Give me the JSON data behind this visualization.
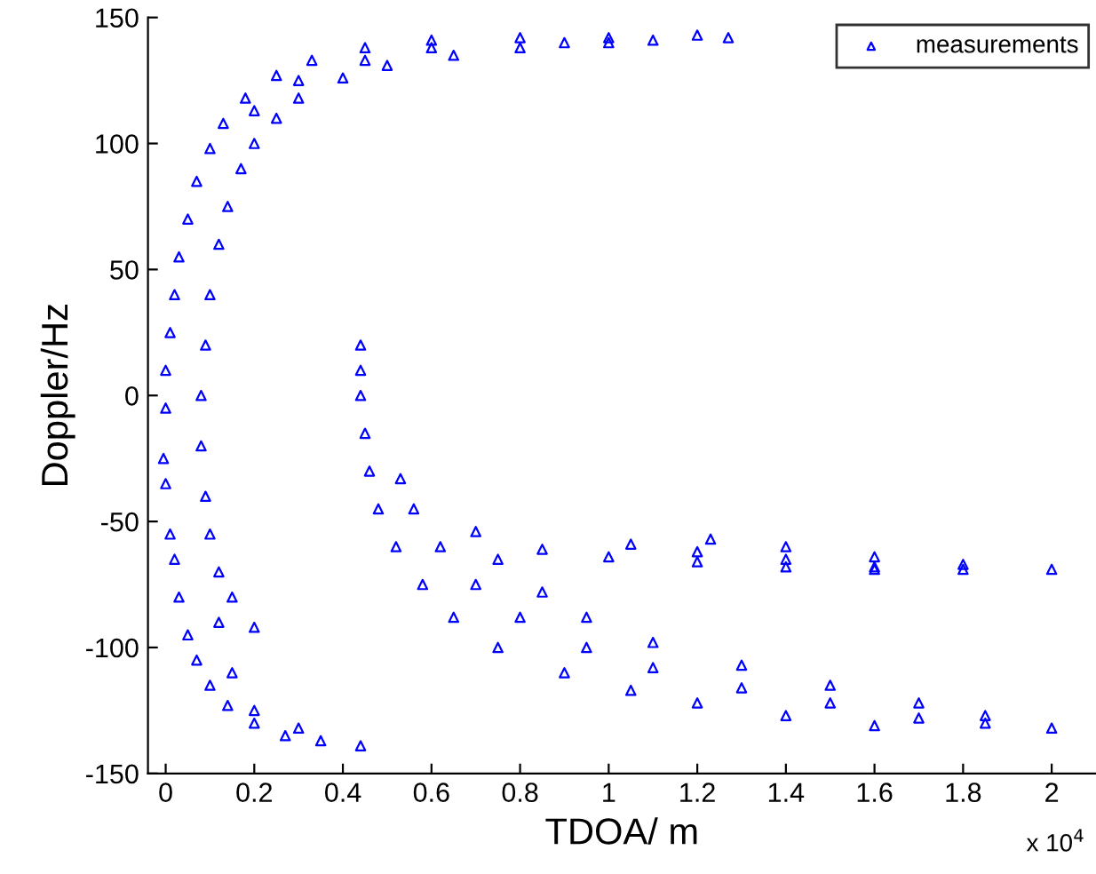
{
  "chart_data": {
    "type": "scatter",
    "xlabel": "TDOA/ m",
    "ylabel": "Doppler/Hz",
    "annotations": [
      "x 10$^{4}$"
    ],
    "series": [
      {
        "name": "measurements",
        "color": "#0000ff",
        "x": [
          0.44,
          0.35,
          0.27,
          0.2,
          0.14,
          0.1,
          0.07,
          0.05,
          0.03,
          0.02,
          0.01,
          0.0,
          -0.005,
          0.0,
          0.0,
          0.01,
          0.02,
          0.03,
          0.05,
          0.07,
          0.1,
          0.13,
          0.18,
          0.25,
          0.33,
          0.45,
          0.6,
          0.8,
          1.0,
          1.2,
          1.27,
          0.08,
          0.09,
          0.1,
          0.12,
          0.14,
          0.17,
          0.2,
          0.25,
          0.3,
          0.4,
          0.5,
          0.65,
          0.8,
          1.0,
          1.1,
          0.08,
          0.09,
          0.1,
          0.12,
          0.15,
          0.2,
          0.12,
          0.15,
          0.2,
          0.3,
          0.44,
          0.44,
          0.44,
          0.45,
          0.46,
          0.48,
          0.52,
          0.58,
          0.65,
          0.75,
          0.9,
          1.05,
          1.2,
          1.4,
          1.6,
          0.53,
          0.56,
          0.62,
          0.7,
          0.8,
          0.95,
          1.1,
          1.3,
          1.5,
          1.7,
          1.85,
          2.0,
          0.7,
          0.75,
          0.85,
          0.95,
          1.1,
          1.3,
          1.5,
          1.7,
          1.85,
          0.85,
          1.0,
          1.2,
          1.4,
          1.6,
          1.8,
          2.0,
          1.05,
          1.2,
          1.4,
          1.6,
          1.23,
          1.4,
          1.6,
          1.8,
          0.2,
          0.3,
          0.45,
          0.6,
          0.9
        ],
        "values": [
          -139,
          -137,
          -135,
          -130,
          -123,
          -115,
          -105,
          -95,
          -80,
          -65,
          -55,
          -35,
          -25,
          -5,
          10,
          25,
          40,
          55,
          70,
          85,
          98,
          108,
          118,
          127,
          133,
          138,
          141,
          142,
          142,
          143,
          142,
          0,
          20,
          40,
          60,
          75,
          90,
          100,
          110,
          118,
          126,
          131,
          135,
          138,
          140,
          141,
          -20,
          -40,
          -55,
          -70,
          -80,
          -92,
          -90,
          -110,
          -125,
          -132,
          20,
          10,
          0,
          -15,
          -30,
          -45,
          -60,
          -75,
          -88,
          -100,
          -110,
          -117,
          -122,
          -127,
          -131,
          -33,
          -45,
          -60,
          -75,
          -88,
          -100,
          -108,
          -116,
          -122,
          -128,
          -130,
          -132,
          -54,
          -65,
          -78,
          -88,
          -98,
          -107,
          -115,
          -122,
          -127,
          -61,
          -64,
          -66,
          -68,
          -69,
          -69,
          -69,
          -59,
          -62,
          -65,
          -68,
          -57,
          -60,
          -64,
          -67,
          113,
          125,
          133,
          138,
          140
        ]
      }
    ],
    "marker": "triangle",
    "legend": "top right",
    "xlim": [
      -0.04,
      2.1
    ],
    "ylim": [
      -150,
      150
    ],
    "xticks": [
      0,
      0.2,
      0.4,
      0.6,
      0.8,
      1,
      1.2,
      1.4,
      1.6,
      1.8,
      2
    ],
    "yticks": [
      -150,
      -100,
      -50,
      0,
      50,
      100,
      150
    ]
  }
}
